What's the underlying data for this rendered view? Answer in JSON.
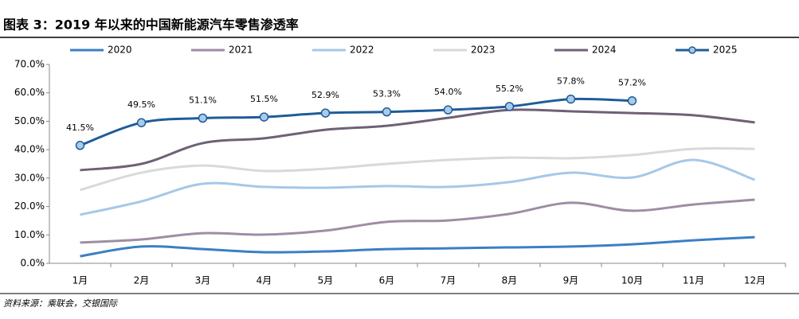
{
  "chart_data": {
    "type": "line",
    "title": "图表 3：2019 年以来的中国新能源汽车零售渗透率",
    "source": "资料来源：乘联会，交银国际",
    "categories": [
      "1月",
      "2月",
      "3月",
      "4月",
      "5月",
      "6月",
      "7月",
      "8月",
      "9月",
      "10月",
      "11月",
      "12月"
    ],
    "ylim": [
      0,
      70
    ],
    "yticks": [
      {
        "value": 0,
        "label": "0.0%"
      },
      {
        "value": 10,
        "label": "10.0%"
      },
      {
        "value": 20,
        "label": "20.0%"
      },
      {
        "value": 30,
        "label": "30.0%"
      },
      {
        "value": 40,
        "label": "40.0%"
      },
      {
        "value": 50,
        "label": "50.0%"
      },
      {
        "value": 60,
        "label": "60.0%"
      },
      {
        "value": 70,
        "label": "70.0%"
      }
    ],
    "grid": false,
    "legend": "top",
    "smooth": true,
    "series": [
      {
        "name": "2020",
        "color": "#3b7fc4",
        "values": [
          2.5,
          5.9,
          5.0,
          3.9,
          4.2,
          5.0,
          5.3,
          5.6,
          5.9,
          6.7,
          8.1,
          9.2
        ]
      },
      {
        "name": "2021",
        "color": "#9e8da4",
        "values": [
          7.3,
          8.4,
          10.6,
          10.1,
          11.5,
          14.6,
          15.1,
          17.4,
          21.3,
          18.5,
          20.7,
          22.4
        ]
      },
      {
        "name": "2022",
        "color": "#a5c8e8",
        "values": [
          17.1,
          21.8,
          28.0,
          26.9,
          26.6,
          27.2,
          26.9,
          28.6,
          31.9,
          30.2,
          36.4,
          29.4
        ]
      },
      {
        "name": "2023",
        "color": "#d9d9d9",
        "values": [
          25.8,
          31.9,
          34.4,
          32.5,
          33.3,
          35.0,
          36.4,
          37.2,
          37.0,
          38.1,
          40.3,
          40.3
        ]
      },
      {
        "name": "2024",
        "color": "#6e6175",
        "values": [
          32.8,
          35.0,
          42.3,
          44.0,
          47.0,
          48.4,
          51.2,
          54.0,
          53.5,
          52.9,
          52.1,
          49.6
        ]
      },
      {
        "name": "2025",
        "color": "#1f5c99",
        "marker": true,
        "marker_fill": "#a9cbea",
        "values": [
          41.5,
          49.5,
          51.1,
          51.5,
          52.9,
          53.3,
          54.0,
          55.2,
          57.8,
          57.2,
          null,
          null
        ],
        "value_labels": [
          "41.5%",
          "49.5%",
          "51.1%",
          "51.5%",
          "52.9%",
          "53.3%",
          "54.0%",
          "55.2%",
          "57.8%",
          "57.2%",
          null,
          null
        ]
      }
    ]
  }
}
